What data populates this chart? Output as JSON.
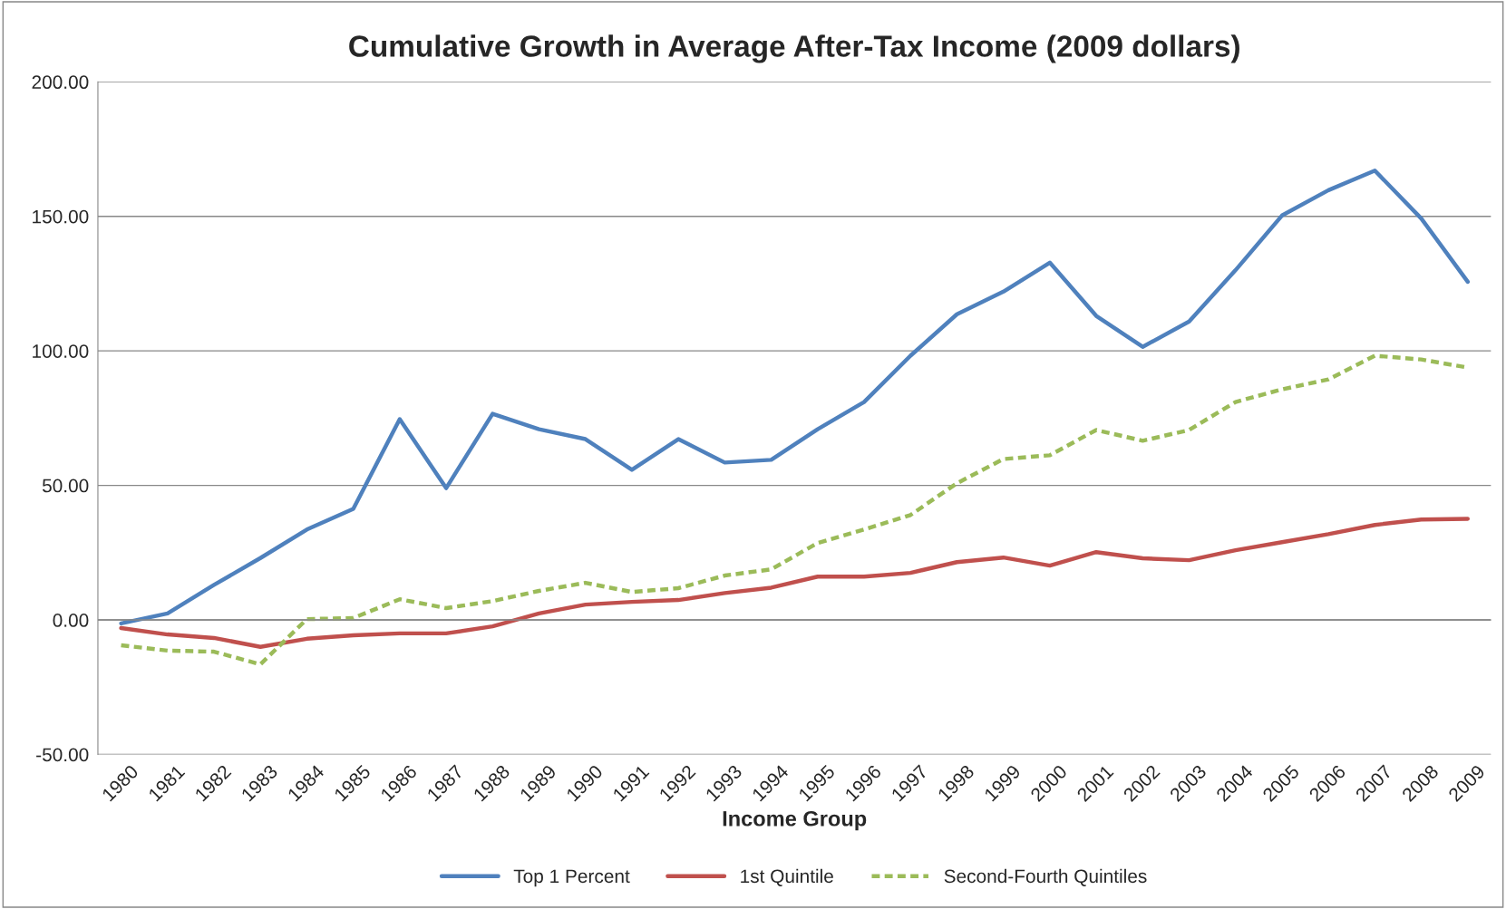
{
  "chart_data": {
    "type": "line",
    "title": "Cumulative Growth in Average After-Tax Income (2009 dollars)",
    "xlabel": "Income Group",
    "categories": [
      "1980",
      "1981",
      "1982",
      "1983",
      "1984",
      "1985",
      "1986",
      "1987",
      "1988",
      "1989",
      "1990",
      "1991",
      "1992",
      "1993",
      "1994",
      "1995",
      "1996",
      "1997",
      "1998",
      "1999",
      "2000",
      "2001",
      "2002",
      "2003",
      "2004",
      "2005",
      "2006",
      "2007",
      "2008",
      "2009"
    ],
    "series": [
      {
        "name": "Top 1 Percent",
        "color": "#4f81bd",
        "line_style": "solid",
        "values": [
          -1.3,
          2.4,
          13,
          23,
          33.6,
          41.3,
          74.6,
          49,
          76.6,
          70.9,
          67.2,
          55.8,
          67.2,
          58.5,
          59.5,
          70.9,
          81,
          98.2,
          113.6,
          122,
          132.8,
          113,
          101.5,
          110.9,
          130,
          150.3,
          159.7,
          167,
          149.2,
          125.7
        ]
      },
      {
        "name": "1st Quintile",
        "color": "#c0504d",
        "line_style": "solid",
        "values": [
          -3,
          -5.4,
          -6.7,
          -10,
          -7,
          -5.7,
          -5,
          -5,
          -2.4,
          2.4,
          5.7,
          6.7,
          7.4,
          10,
          12,
          16.1,
          16.1,
          17.5,
          21.5,
          23.2,
          20.2,
          25.2,
          22.9,
          22.2,
          25.9,
          28.9,
          31.9,
          35.3,
          37.3,
          37.6
        ]
      },
      {
        "name": "Second-Fourth Quintiles",
        "color": "#9bbb59",
        "line_style": "dashed",
        "values": [
          -9.4,
          -11.4,
          -11.8,
          -16.5,
          0.3,
          0.7,
          7.7,
          4.4,
          7,
          10.8,
          13.8,
          10.4,
          11.8,
          16.5,
          18.8,
          28.6,
          33.6,
          39,
          50.8,
          59.8,
          61.2,
          70.6,
          66.6,
          70.6,
          81,
          85.7,
          89.4,
          98.2,
          96.8,
          93.8
        ]
      }
    ],
    "ylim": [
      -50,
      200
    ],
    "yticks": [
      {
        "value": -50,
        "label": "-50.00"
      },
      {
        "value": 0,
        "label": "0.00"
      },
      {
        "value": 50,
        "label": "50.00"
      },
      {
        "value": 100,
        "label": "100.00"
      },
      {
        "value": 150,
        "label": "150.00"
      },
      {
        "value": 200,
        "label": "200.00"
      }
    ],
    "grid": "y",
    "legend": "bottom",
    "marker": "none"
  }
}
